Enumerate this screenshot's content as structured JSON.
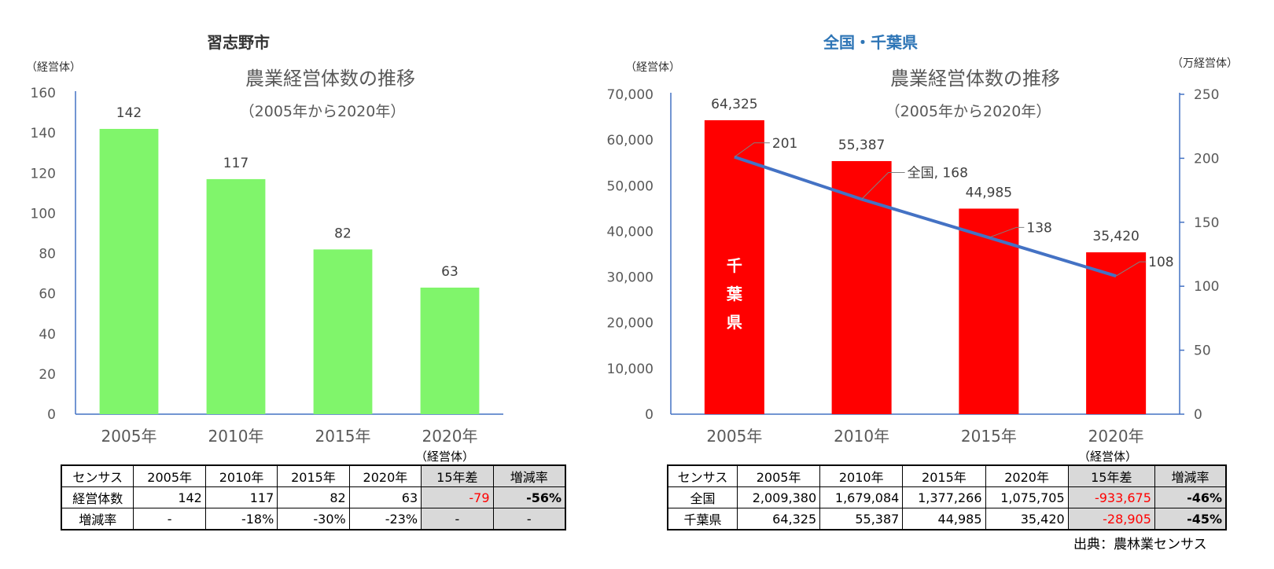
{
  "left": {
    "section_title": "習志野市",
    "y_unit": "（経営体）",
    "chart_title": "農業経営体数の推移",
    "chart_subtitle": "（2005年から2020年）",
    "table_unit": "（経営体）",
    "table": {
      "header": [
        "センサス",
        "2005年",
        "2010年",
        "2015年",
        "2020年",
        "15年差",
        "増減率"
      ],
      "rows": [
        [
          "経営体数",
          "142",
          "117",
          "82",
          "63",
          "-79",
          "-56%"
        ],
        [
          "増減率",
          "-",
          "-18%",
          "-30%",
          "-23%",
          "-",
          "-"
        ]
      ]
    }
  },
  "right": {
    "section_title": "全国・千葉県",
    "y_unit_left": "（経営体）",
    "y_unit_right": "（万経営体）",
    "chart_title": "農業経営体数の推移",
    "chart_subtitle": "（2005年から2020年）",
    "bar_inner_label": [
      "千",
      "葉",
      "県"
    ],
    "table_unit": "（経営体）",
    "table": {
      "header": [
        "センサス",
        "2005年",
        "2010年",
        "2015年",
        "2020年",
        "15年差",
        "増減率"
      ],
      "rows": [
        [
          "全国",
          "2,009,380",
          "1,679,084",
          "1,377,266",
          "1,075,705",
          "-933,675",
          "-46%"
        ],
        [
          "千葉県",
          "64,325",
          "55,387",
          "44,985",
          "35,420",
          "-28,905",
          "-45%"
        ]
      ]
    },
    "source": "出典：農林業センサス"
  },
  "chart_data": [
    {
      "type": "bar",
      "title": "農業経営体数の推移",
      "subtitle": "（2005年から2020年）",
      "categories": [
        "2005年",
        "2010年",
        "2015年",
        "2020年"
      ],
      "values": [
        142,
        117,
        82,
        63
      ],
      "data_labels": [
        "142",
        "117",
        "82",
        "63"
      ],
      "ylabel": "（経営体）",
      "ylim": [
        0,
        160
      ],
      "yticks": [
        0,
        20,
        40,
        60,
        80,
        100,
        120,
        140,
        160
      ],
      "ytick_labels": [
        "0",
        "20",
        "40",
        "60",
        "80",
        "100",
        "120",
        "140",
        "160"
      ],
      "color": "#80f56b",
      "grid": false
    },
    {
      "type": "bar+line",
      "title": "農業経営体数の推移",
      "subtitle": "（2005年から2020年）",
      "categories": [
        "2005年",
        "2010年",
        "2015年",
        "2020年"
      ],
      "series": [
        {
          "name": "千葉県",
          "type": "bar",
          "axis": "left",
          "values": [
            64325,
            55387,
            44985,
            35420
          ],
          "data_labels": [
            "64,325",
            "55,387",
            "44,985",
            "35,420"
          ],
          "color": "#ff0000"
        },
        {
          "name": "全国",
          "type": "line",
          "axis": "right",
          "values": [
            201,
            168,
            138,
            108
          ],
          "data_labels": [
            "201",
            "全国, 168",
            "138",
            "108"
          ],
          "color": "#4472c4"
        }
      ],
      "ylabel_left": "（経営体）",
      "ylabel_right": "（万経営体）",
      "ylim_left": [
        0,
        70000
      ],
      "ylim_right": [
        0,
        250
      ],
      "yticks_left": [
        "0",
        "10,000",
        "20,000",
        "30,000",
        "40,000",
        "50,000",
        "60,000",
        "70,000"
      ],
      "yticks_right": [
        "0",
        "50",
        "100",
        "150",
        "200",
        "250"
      ],
      "grid": false
    }
  ]
}
